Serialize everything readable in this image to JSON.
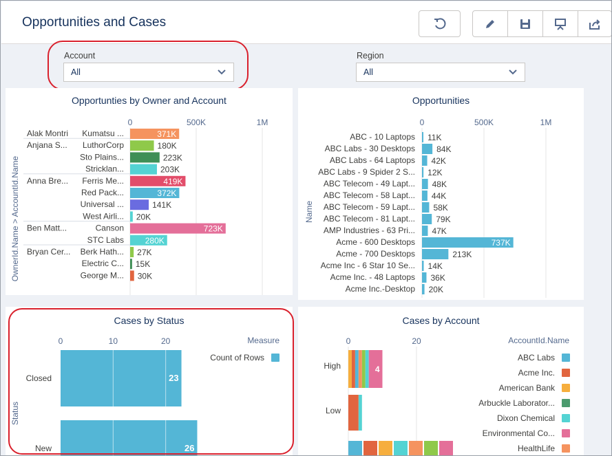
{
  "header": {
    "title": "Opportunities and Cases",
    "buttons": [
      {
        "name": "undo-button",
        "icon": "undo-icon"
      },
      {
        "name": "edit-button",
        "icon": "pencil-icon"
      },
      {
        "name": "save-button",
        "icon": "save-icon"
      },
      {
        "name": "present-button",
        "icon": "presentation-icon"
      },
      {
        "name": "share-button",
        "icon": "share-icon"
      }
    ]
  },
  "filters": {
    "account": {
      "label": "Account",
      "value": "All"
    },
    "region": {
      "label": "Region",
      "value": "All"
    }
  },
  "colors": {
    "accent": "#16325c",
    "highlight": "#d9202c",
    "series": [
      "#54b6d6",
      "#e1653f",
      "#f6ae3d",
      "#4c9b6e",
      "#54d3d3",
      "#e46f99",
      "#f5935f",
      "#8fc94a",
      "#3f8f56",
      "#6a6ce0",
      "#e24d6a"
    ]
  },
  "chart_data": [
    {
      "type": "bar",
      "title": "Opportunties by Owner and Account",
      "ylabel": "OwnerId.Name > AccountId.Name",
      "xlim": [
        0,
        1000000
      ],
      "ticks": [
        "0",
        "500K",
        "1M"
      ],
      "tick_values": [
        0,
        500000,
        1000000
      ],
      "groups": [
        {
          "owner": "Alak Montri",
          "rows": [
            {
              "account": "Kumatsu ...",
              "value": 371000,
              "label": "371K",
              "color": "#f5935f"
            }
          ]
        },
        {
          "owner": "Anjana S...",
          "rows": [
            {
              "account": "LuthorCorp",
              "value": 180000,
              "label": "180K",
              "color": "#8fc94a"
            },
            {
              "account": "Sto Plains...",
              "value": 223000,
              "label": "223K",
              "color": "#3f8f56"
            },
            {
              "account": "Stricklan...",
              "value": 203000,
              "label": "203K",
              "color": "#54d3d3"
            }
          ]
        },
        {
          "owner": "Anna Bre...",
          "rows": [
            {
              "account": "Ferris Me...",
              "value": 419000,
              "label": "419K",
              "color": "#e24d6a"
            },
            {
              "account": "Red Pack...",
              "value": 372000,
              "label": "372K",
              "color": "#54b6d6"
            },
            {
              "account": "Universal ...",
              "value": 141000,
              "label": "141K",
              "color": "#6a6ce0"
            },
            {
              "account": "West Airli...",
              "value": 20000,
              "label": "20K",
              "color": "#54d3d3"
            }
          ]
        },
        {
          "owner": "Ben Matt...",
          "rows": [
            {
              "account": "Canson",
              "value": 723000,
              "label": "723K",
              "color": "#e46f99"
            },
            {
              "account": "STC Labs",
              "value": 280000,
              "label": "280K",
              "color": "#54d3d3"
            }
          ]
        },
        {
          "owner": "Bryan Cer...",
          "rows": [
            {
              "account": "Berk Hath...",
              "value": 27000,
              "label": "27K",
              "color": "#8fc94a"
            },
            {
              "account": "Electric C...",
              "value": 15000,
              "label": "15K",
              "color": "#3f8f56"
            },
            {
              "account": "George M...",
              "value": 30000,
              "label": "30K",
              "color": "#e1653f"
            }
          ]
        }
      ]
    },
    {
      "type": "bar",
      "title": "Opportunities",
      "ylabel": "Name",
      "xlim": [
        0,
        1000000
      ],
      "ticks": [
        "0",
        "500K",
        "1M"
      ],
      "tick_values": [
        0,
        500000,
        1000000
      ],
      "categories": [
        "ABC - 10 Laptops",
        "ABC Labs - 30 Desktops",
        "ABC Labs - 64 Laptops",
        "ABC Labs - 9 Spider 2 S...",
        "ABC Telecom - 49 Lapt...",
        "ABC Telecom - 58 Lapt...",
        "ABC Telecom - 59 Lapt...",
        "ABC Telecom - 81 Lapt...",
        "AMP Industries - 63 Pri...",
        "Acme - 600 Desktops",
        "Acme - 700 Desktops",
        "Acme Inc - 6 Star 10 Se...",
        "Acme Inc. - 48 Laptops",
        "Acme Inc.-Desktop"
      ],
      "values": [
        11000,
        84000,
        42000,
        12000,
        48000,
        44000,
        58000,
        79000,
        47000,
        737000,
        213000,
        14000,
        36000,
        20000
      ],
      "labels": [
        "11K",
        "84K",
        "42K",
        "12K",
        "48K",
        "44K",
        "58K",
        "79K",
        "47K",
        "737K",
        "213K",
        "14K",
        "36K",
        "20K"
      ]
    },
    {
      "type": "bar",
      "title": "Cases by Status",
      "ylabel": "Status",
      "xlim": [
        0,
        30
      ],
      "ticks": [
        "0",
        "10",
        "20"
      ],
      "tick_values": [
        0,
        10,
        20
      ],
      "legend_title": "Measure",
      "legend": [
        "Count of Rows"
      ],
      "categories": [
        "Closed",
        "New"
      ],
      "values": [
        23,
        26
      ],
      "labels": [
        "23",
        "26"
      ]
    },
    {
      "type": "bar",
      "title": "Cases by Account",
      "xlim": [
        0,
        40
      ],
      "ticks": [
        "0",
        "20"
      ],
      "tick_values": [
        0,
        20
      ],
      "legend_title": "AccountId.Name",
      "legend": [
        "ABC Labs",
        "Acme Inc.",
        "American Bank",
        "Arbuckle Laborator...",
        "Dixon Chemical",
        "Environmental Co...",
        "HealthLife"
      ],
      "legend_colors": [
        "#54b6d6",
        "#e1653f",
        "#f6ae3d",
        "#4c9b6e",
        "#54d3d3",
        "#e46f99",
        "#f5935f"
      ],
      "categories": [
        "High",
        "Low"
      ],
      "stacks": [
        [
          {
            "value": 1,
            "color": "#f6ae3d"
          },
          {
            "value": 1,
            "color": "#e1653f"
          },
          {
            "value": 1,
            "color": "#54b6d6"
          },
          {
            "value": 1,
            "color": "#f5935f"
          },
          {
            "value": 1,
            "color": "#8fc94a"
          },
          {
            "value": 1,
            "color": "#54d3d3"
          },
          {
            "value": 4,
            "color": "#e46f99",
            "label": "4"
          }
        ],
        [
          {
            "value": 3,
            "color": "#e1653f"
          },
          {
            "value": 1,
            "color": "#54d3d3"
          }
        ]
      ]
    }
  ]
}
